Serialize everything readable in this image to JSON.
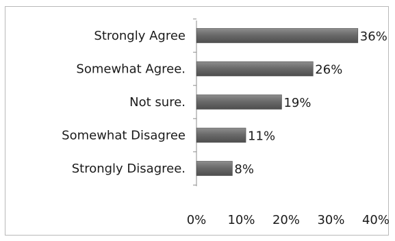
{
  "chart_data": {
    "type": "bar",
    "orientation": "horizontal",
    "categories": [
      "Strongly Agree",
      "Somewhat Agree.",
      "Not sure.",
      "Somewhat Disagree",
      "Strongly Disagree."
    ],
    "values": [
      36,
      26,
      19,
      11,
      8
    ],
    "value_labels": [
      "36%",
      "26%",
      "19%",
      "11%",
      "8%"
    ],
    "xlim": [
      0,
      40
    ],
    "xticks": [
      0,
      10,
      20,
      30,
      40
    ],
    "xtick_labels": [
      "0%",
      "10%",
      "20%",
      "30%",
      "40%"
    ],
    "title": "",
    "xlabel": "",
    "ylabel": "",
    "grid": false,
    "legend": "none",
    "bar_color": "#676767",
    "bar_highlight": "#8a8a8a"
  }
}
